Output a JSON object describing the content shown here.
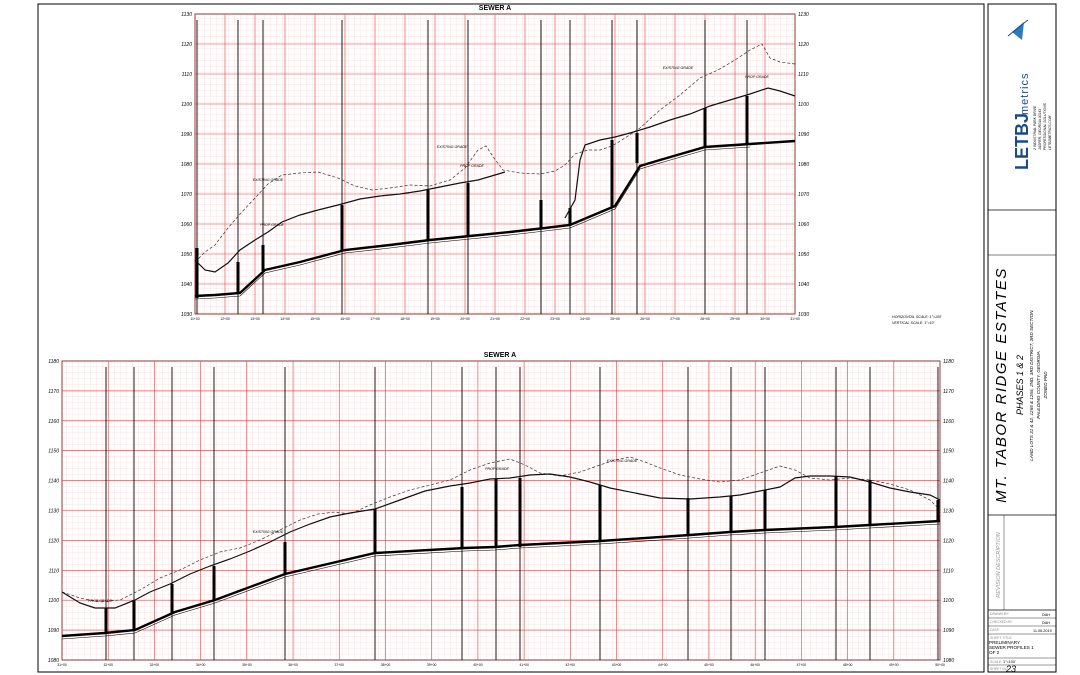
{
  "profiles": [
    {
      "title": "SEWER A",
      "y_labels": [
        "1130",
        "1120",
        "1110",
        "1100",
        "1090",
        "1080",
        "1070",
        "1060",
        "1050",
        "1040",
        "1030"
      ],
      "y_range": [
        1030,
        1130
      ],
      "x_ticks": [
        "11+00",
        "12+00",
        "13+00",
        "14+00",
        "15+00",
        "16+00",
        "17+00",
        "18+00",
        "19+00",
        "20+00",
        "21+00",
        "22+00",
        "23+00",
        "24+00",
        "25+00",
        "26+00",
        "27+00",
        "28+00",
        "29+00",
        "30+00",
        "31+00"
      ],
      "annotations": [
        "EXISTING GRADE",
        "PROP GRADE",
        "EXISTING GRADE",
        "PROP GRADE",
        "EXISTING GRADE",
        "PROP GRADE"
      ],
      "scale_note": [
        "HORIZONTAL SCALE: 1\"=100'",
        "VERTICAL SCALE: 1\"=10'"
      ]
    },
    {
      "title": "SEWER A",
      "y_labels": [
        "1180",
        "1170",
        "1160",
        "1150",
        "1140",
        "1130",
        "1120",
        "1110",
        "1100",
        "1090",
        "1080"
      ],
      "y_range": [
        1080,
        1180
      ],
      "x_ticks": [
        "31+00",
        "32+00",
        "33+00",
        "34+00",
        "35+00",
        "36+00",
        "37+00",
        "38+00",
        "39+00",
        "40+00",
        "41+00",
        "42+00",
        "43+00",
        "44+00",
        "45+00",
        "46+00",
        "47+00",
        "48+00",
        "49+00",
        "50+00"
      ],
      "annotations": [
        "PROP GRADE",
        "EXISTING GRADE",
        "PROP GRADE",
        "EXISTING GRADE"
      ]
    }
  ],
  "title_block": {
    "logo_text": "LETBJ",
    "logo_sub": "metrics",
    "company_lines": [
      "PROFESSIONAL SOLUTIONS",
      "LETBJMETRICS.COM"
    ],
    "address_lines": [
      "2 INDUSTRIAL PARK DRIVE",
      "JASPER, GEORGIA 30143"
    ],
    "project_name": "MT. TABOR RIDGE ESTATES",
    "phase": "PHASES 1 & 2",
    "location": "LAND LOTS 31 & 42, 1265 & 1266, 2ND, 3RD DISTRICT, 3RD SECTION,",
    "county": "PAULDING COUNTY, GEORGIA",
    "zoning": "ZONED PRD",
    "revision_header": "REVISION DESCRIPTION",
    "fields": [
      {
        "label": "DRAWN BY:",
        "value": "DAH"
      },
      {
        "label": "CHECKED BY:",
        "value": "DAH"
      },
      {
        "label": "DATE:",
        "value": "11.06.2019"
      }
    ],
    "sheet_title_label": "SHEET TITLE:",
    "sheet_title": "PRELIMINARY SEWER PROFILES 1 OF 2",
    "scale_label": "SCALE:",
    "scale_value": "1\"=100'",
    "sheet_label": "SHEET NO.:",
    "sheet_number": "23"
  }
}
